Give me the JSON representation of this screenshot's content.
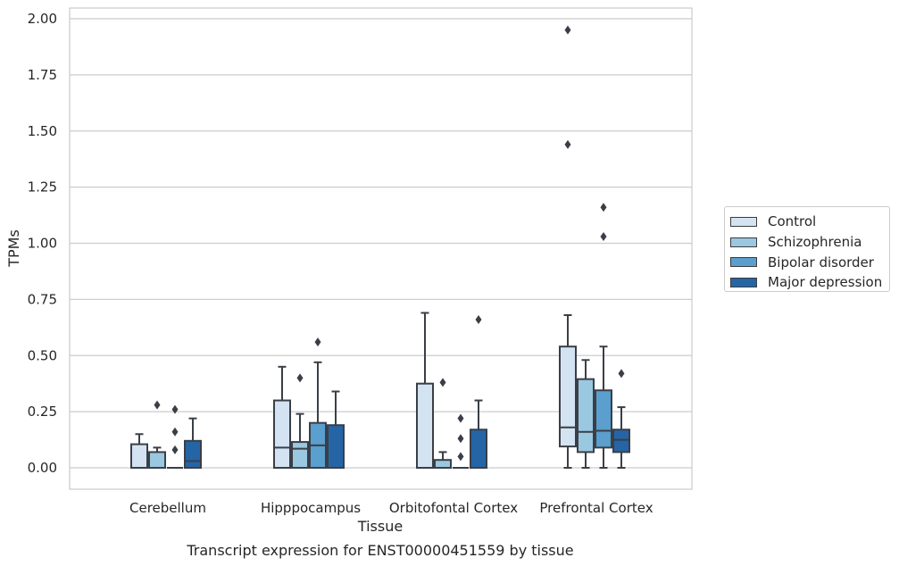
{
  "chart_data": {
    "type": "box",
    "title": "Transcript expression for ENST00000451559 by tissue",
    "xlabel": "Tissue",
    "ylabel": "TPMs",
    "ylim": [
      -0.1,
      2.05
    ],
    "yticks": [
      "0.00",
      "0.25",
      "0.50",
      "0.75",
      "1.00",
      "1.25",
      "1.50",
      "1.75",
      "2.00"
    ],
    "ytick_values": [
      0,
      0.25,
      0.5,
      0.75,
      1.0,
      1.25,
      1.5,
      1.75,
      2.0
    ],
    "categories": [
      "Cerebellum",
      "Hipppocampus",
      "Orbitofontal Cortex",
      "Prefrontal Cortex"
    ],
    "grid": "horizontal",
    "legend_position": "right",
    "series": [
      {
        "name": "Control",
        "color": "#d3e3f2",
        "boxes": [
          {
            "whislo": 0.0,
            "q1": 0.0,
            "med": 0.0,
            "q3": 0.105,
            "whishi": 0.15,
            "fliers": []
          },
          {
            "whislo": 0.0,
            "q1": 0.0,
            "med": 0.09,
            "q3": 0.3,
            "whishi": 0.45,
            "fliers": []
          },
          {
            "whislo": 0.0,
            "q1": 0.0,
            "med": 0.0,
            "q3": 0.375,
            "whishi": 0.69,
            "fliers": []
          },
          {
            "whislo": 0.0,
            "q1": 0.095,
            "med": 0.18,
            "q3": 0.54,
            "whishi": 0.68,
            "fliers": [
              1.95,
              1.44
            ]
          }
        ]
      },
      {
        "name": "Schizophrenia",
        "color": "#9ac8e0",
        "boxes": [
          {
            "whislo": 0.0,
            "q1": 0.0,
            "med": 0.0,
            "q3": 0.07,
            "whishi": 0.09,
            "fliers": [
              0.28
            ]
          },
          {
            "whislo": 0.0,
            "q1": 0.0,
            "med": 0.085,
            "q3": 0.115,
            "whishi": 0.24,
            "fliers": [
              0.4
            ]
          },
          {
            "whislo": 0.0,
            "q1": 0.0,
            "med": 0.0,
            "q3": 0.035,
            "whishi": 0.07,
            "fliers": [
              0.38
            ]
          },
          {
            "whislo": 0.0,
            "q1": 0.07,
            "med": 0.16,
            "q3": 0.395,
            "whishi": 0.48,
            "fliers": []
          }
        ]
      },
      {
        "name": "Bipolar disorder",
        "color": "#5a9fcd",
        "boxes": [
          {
            "whislo": 0.0,
            "q1": 0.0,
            "med": 0.0,
            "q3": 0.0,
            "whishi": 0.0,
            "fliers": [
              0.26,
              0.16,
              0.08
            ]
          },
          {
            "whislo": 0.0,
            "q1": 0.0,
            "med": 0.1,
            "q3": 0.2,
            "whishi": 0.47,
            "fliers": [
              0.56
            ]
          },
          {
            "whislo": 0.0,
            "q1": 0.0,
            "med": 0.0,
            "q3": 0.0,
            "whishi": 0.0,
            "fliers": [
              0.22,
              0.13,
              0.05
            ]
          },
          {
            "whislo": 0.0,
            "q1": 0.09,
            "med": 0.165,
            "q3": 0.345,
            "whishi": 0.54,
            "fliers": [
              1.16,
              1.03
            ]
          }
        ]
      },
      {
        "name": "Major depression",
        "color": "#2565a5",
        "boxes": [
          {
            "whislo": 0.0,
            "q1": 0.0,
            "med": 0.03,
            "q3": 0.12,
            "whishi": 0.22,
            "fliers": []
          },
          {
            "whislo": 0.0,
            "q1": 0.0,
            "med": 0.0,
            "q3": 0.19,
            "whishi": 0.34,
            "fliers": []
          },
          {
            "whislo": 0.0,
            "q1": 0.0,
            "med": 0.0,
            "q3": 0.17,
            "whishi": 0.3,
            "fliers": [
              0.66
            ]
          },
          {
            "whislo": 0.0,
            "q1": 0.07,
            "med": 0.125,
            "q3": 0.17,
            "whishi": 0.27,
            "fliers": [
              0.42
            ]
          }
        ]
      }
    ]
  }
}
